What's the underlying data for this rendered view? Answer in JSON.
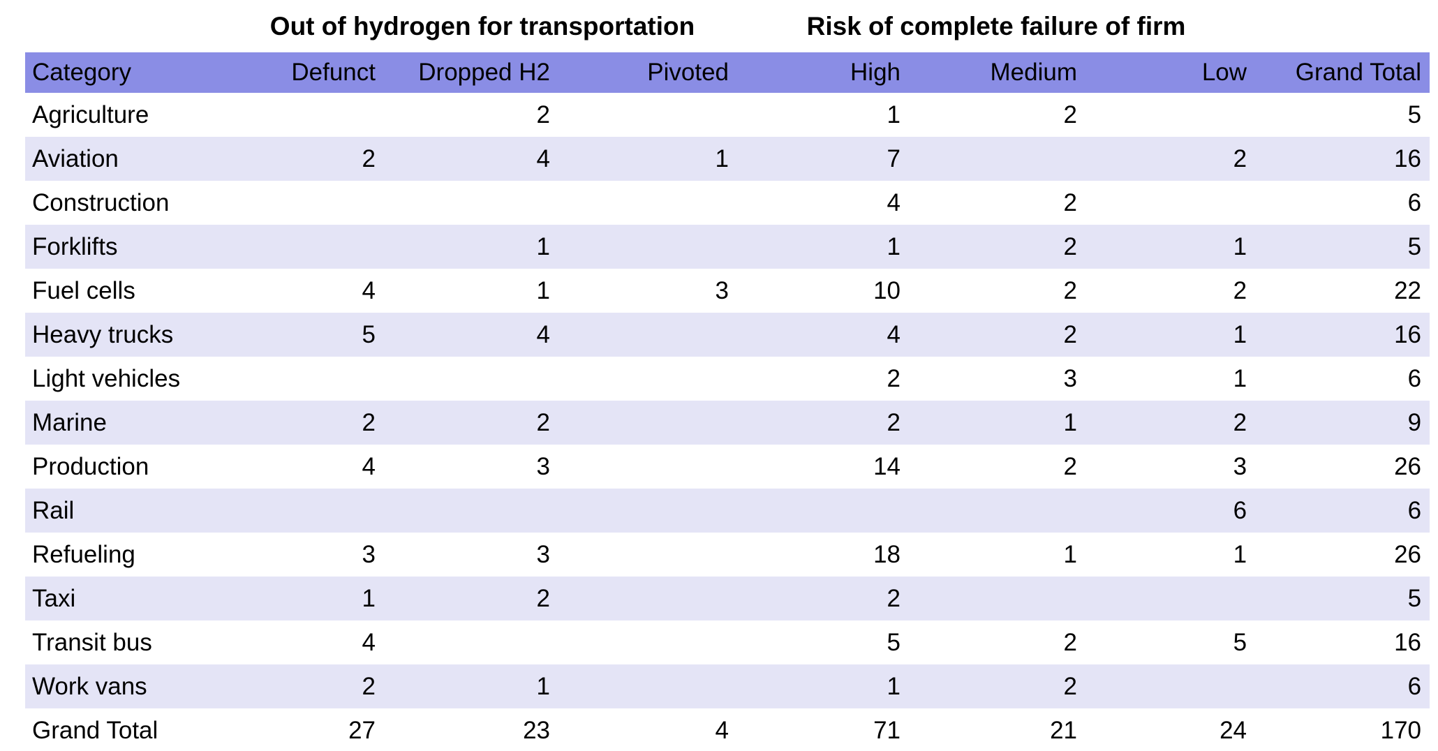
{
  "colors": {
    "header_bg": "#8a8de5",
    "band_bg": "#e4e4f6",
    "text": "#000000",
    "page_bg": "#ffffff"
  },
  "table": {
    "group_headers": [
      "Out of hydrogen for transportation",
      "Risk of complete failure of firm"
    ],
    "columns": [
      "Category",
      "Defunct",
      "Dropped H2",
      "Pivoted",
      "High",
      "Medium",
      "Low",
      "Grand Total"
    ],
    "rows": [
      {
        "category": "Agriculture",
        "values": [
          "",
          "2",
          "",
          "1",
          "2",
          "",
          "5"
        ]
      },
      {
        "category": "Aviation",
        "values": [
          "2",
          "4",
          "1",
          "7",
          "",
          "2",
          "16"
        ]
      },
      {
        "category": "Construction",
        "values": [
          "",
          "",
          "",
          "4",
          "2",
          "",
          "6"
        ]
      },
      {
        "category": "Forklifts",
        "values": [
          "",
          "1",
          "",
          "1",
          "2",
          "1",
          "5"
        ]
      },
      {
        "category": "Fuel cells",
        "values": [
          "4",
          "1",
          "3",
          "10",
          "2",
          "2",
          "22"
        ]
      },
      {
        "category": "Heavy trucks",
        "values": [
          "5",
          "4",
          "",
          "4",
          "2",
          "1",
          "16"
        ]
      },
      {
        "category": "Light vehicles",
        "values": [
          "",
          "",
          "",
          "2",
          "3",
          "1",
          "6"
        ]
      },
      {
        "category": "Marine",
        "values": [
          "2",
          "2",
          "",
          "2",
          "1",
          "2",
          "9"
        ]
      },
      {
        "category": "Production",
        "values": [
          "4",
          "3",
          "",
          "14",
          "2",
          "3",
          "26"
        ]
      },
      {
        "category": "Rail",
        "values": [
          "",
          "",
          "",
          "",
          "",
          "6",
          "6"
        ]
      },
      {
        "category": "Refueling",
        "values": [
          "3",
          "3",
          "",
          "18",
          "1",
          "1",
          "26"
        ]
      },
      {
        "category": "Taxi",
        "values": [
          "1",
          "2",
          "",
          "2",
          "",
          "",
          "5"
        ]
      },
      {
        "category": "Transit bus",
        "values": [
          "4",
          "",
          "",
          "5",
          "2",
          "5",
          "16"
        ]
      },
      {
        "category": "Work vans",
        "values": [
          "2",
          "1",
          "",
          "1",
          "2",
          "",
          "6"
        ]
      },
      {
        "category": "Grand Total",
        "values": [
          "27",
          "23",
          "4",
          "71",
          "21",
          "24",
          "170"
        ]
      }
    ]
  }
}
